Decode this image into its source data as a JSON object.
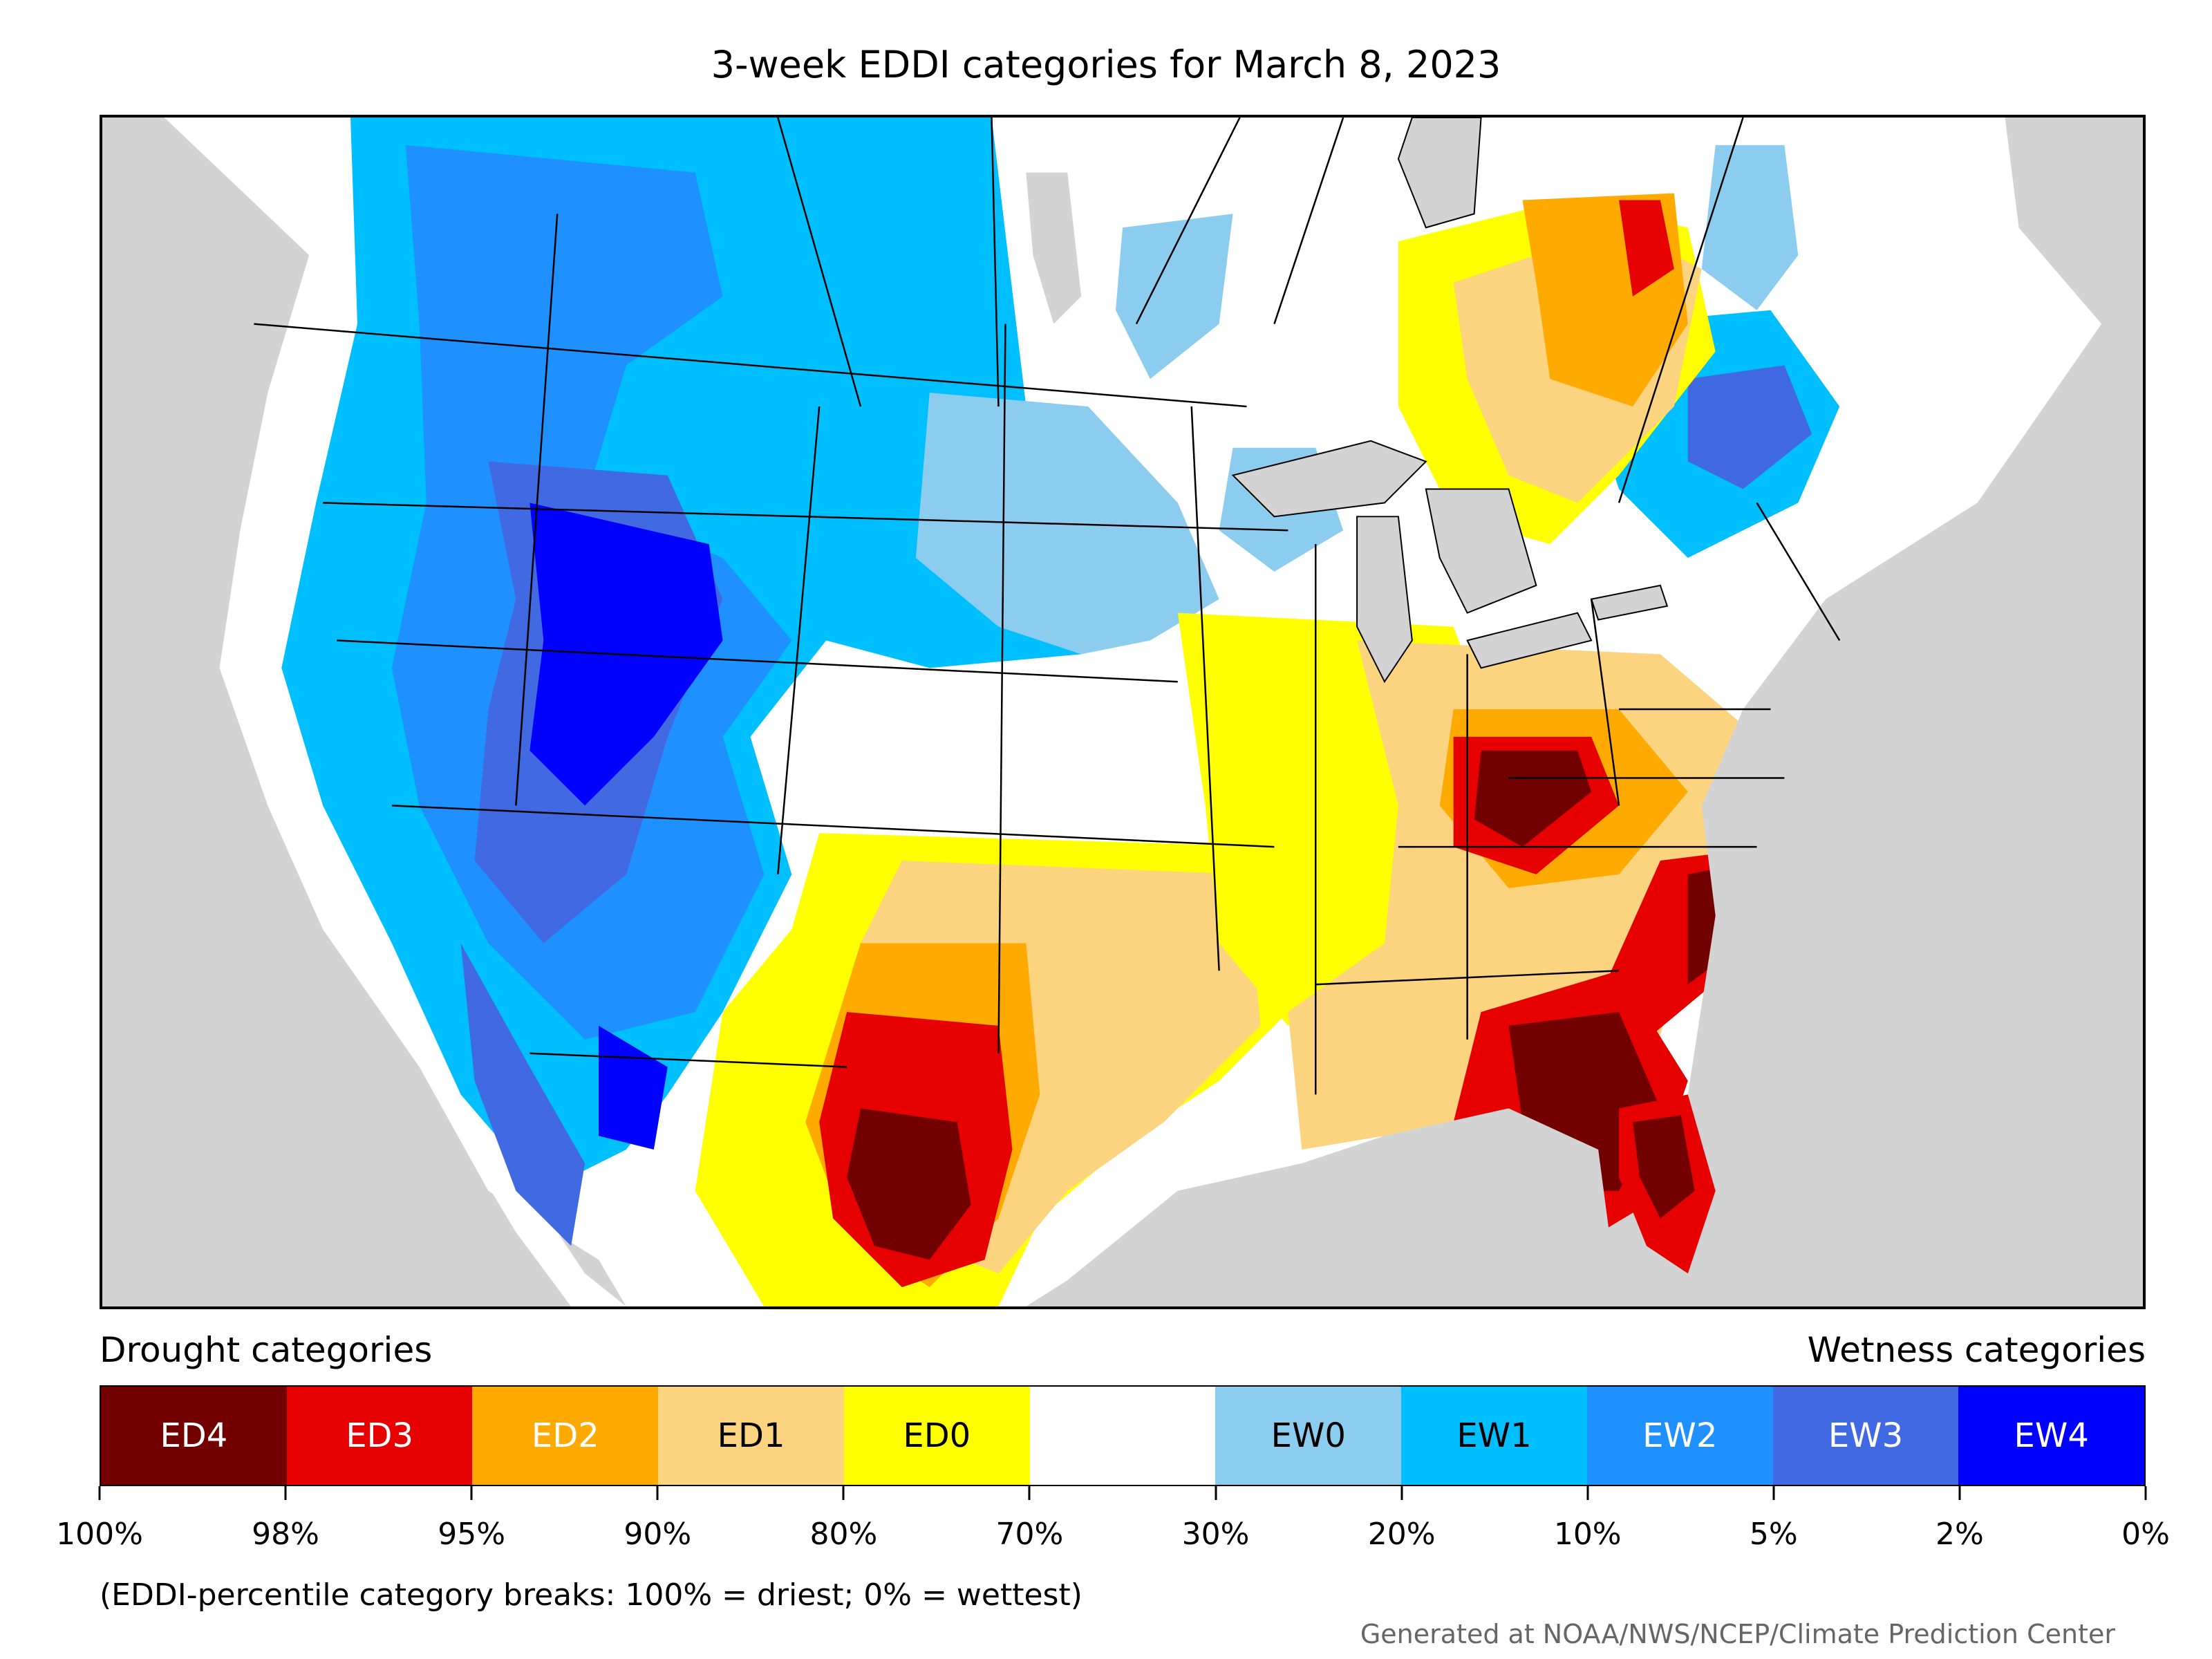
{
  "title": "3-week EDDI categories for March 8, 2023",
  "legend": {
    "drought_label": "Drought categories",
    "wetness_label": "Wetness categories",
    "categories": [
      {
        "label": "ED4",
        "color": "#730000",
        "text_color": "#ffffff"
      },
      {
        "label": "ED3",
        "color": "#e60000",
        "text_color": "#ffffff"
      },
      {
        "label": "ED2",
        "color": "#ffaa00",
        "text_color": "#ffffff"
      },
      {
        "label": "ED1",
        "color": "#fcd37f",
        "text_color": "#000000"
      },
      {
        "label": "ED0",
        "color": "#ffff00",
        "text_color": "#000000"
      },
      {
        "label": "",
        "color": "#ffffff",
        "text_color": "#000000"
      },
      {
        "label": "EW0",
        "color": "#8ccdef",
        "text_color": "#000000"
      },
      {
        "label": "EW1",
        "color": "#00bfff",
        "text_color": "#000000"
      },
      {
        "label": "EW2",
        "color": "#1e90ff",
        "text_color": "#ffffff"
      },
      {
        "label": "EW3",
        "color": "#4169e1",
        "text_color": "#ffffff"
      },
      {
        "label": "EW4",
        "color": "#0000ff",
        "text_color": "#ffffff"
      }
    ],
    "ticks": [
      "100%",
      "98%",
      "95%",
      "90%",
      "80%",
      "70%",
      "30%",
      "20%",
      "10%",
      "5%",
      "2%",
      "0%"
    ]
  },
  "note": "(EDDI-percentile category breaks: 100% = driest; 0% = wettest)",
  "credit": "Generated at NOAA/NWS/NCEP/Climate Prediction Center",
  "map": {
    "background_color": "#d3d3d3",
    "lake_color": "#d3d3d3",
    "border_color": "#000000"
  }
}
